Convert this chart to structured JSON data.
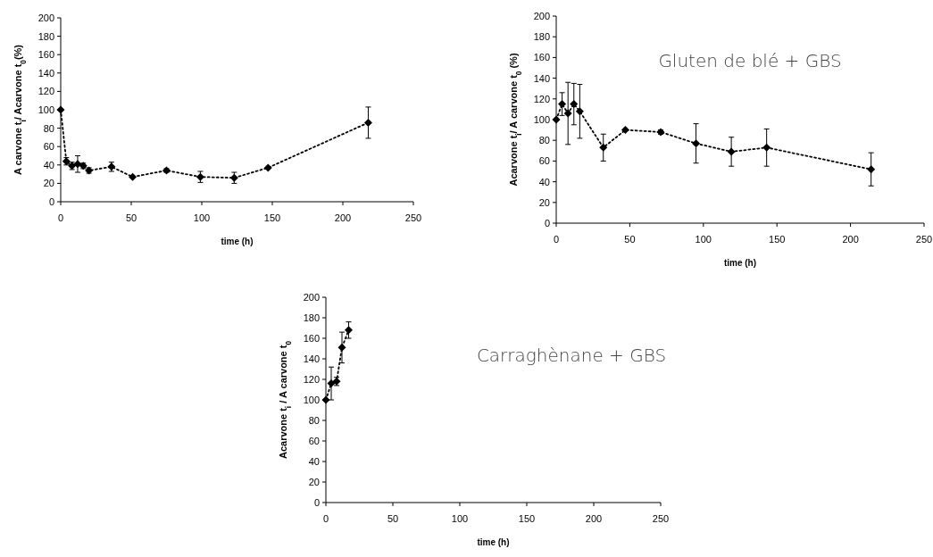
{
  "chart_data": [
    {
      "type": "line",
      "xlabel": "time (h)",
      "ylabel": "A carvone t$_{i}$/ Acarvone t$_{0}$(%)",
      "x": [
        0,
        4,
        8,
        12,
        16,
        20,
        36,
        51,
        75,
        99,
        123,
        147,
        218
      ],
      "xlim": [
        0,
        250
      ],
      "xticks": [
        0,
        50,
        100,
        150,
        200,
        250
      ],
      "ylim": [
        0,
        200
      ],
      "yticks": [
        0,
        20,
        40,
        60,
        80,
        100,
        120,
        140,
        160,
        180,
        200
      ],
      "marker": "diamond",
      "line_style": "dotted",
      "grid": false,
      "series": [
        {
          "color": "#000000",
          "values": [
            100,
            44,
            39,
            41,
            39,
            34,
            38,
            27,
            34,
            27,
            26,
            37,
            86
          ],
          "errors": [
            null,
            4,
            4,
            9,
            3,
            3,
            5,
            null,
            2,
            6,
            6,
            null,
            17
          ]
        }
      ]
    },
    {
      "type": "line",
      "xlabel": "time (h)",
      "ylabel": "Acarvone t$_{i}$/ A carvone t$_{0}$ (%)",
      "annotations": [
        "Gluten de blé + GBS"
      ],
      "x": [
        0,
        4,
        8,
        12,
        16,
        32,
        47,
        71,
        95,
        119,
        143,
        214
      ],
      "xlim": [
        0,
        250
      ],
      "xticks": [
        0,
        50,
        100,
        150,
        200,
        250
      ],
      "ylim": [
        0,
        200
      ],
      "yticks": [
        0,
        20,
        40,
        60,
        80,
        100,
        120,
        140,
        160,
        180,
        200
      ],
      "marker": "diamond",
      "line_style": "dotted",
      "grid": false,
      "series": [
        {
          "color": "#000000",
          "values": [
            100,
            115,
            106,
            115,
            108,
            73,
            90,
            88,
            77,
            69,
            73,
            52
          ],
          "errors": [
            null,
            11,
            30,
            20,
            26,
            13,
            null,
            2,
            19,
            14,
            18,
            16
          ]
        }
      ]
    },
    {
      "type": "line",
      "xlabel": "time (h)",
      "ylabel": "Acarvone t$_{i}$ /  A carvone t$_{0}$",
      "annotations": [
        "Carraghènane + GBS"
      ],
      "x": [
        0,
        4,
        8,
        12,
        17
      ],
      "xlim": [
        0,
        250
      ],
      "xticks": [
        0,
        50,
        100,
        150,
        200,
        250
      ],
      "ylim": [
        0,
        200
      ],
      "yticks": [
        0,
        20,
        40,
        60,
        80,
        100,
        120,
        140,
        160,
        180,
        200
      ],
      "marker": "diamond",
      "line_style": "dotted",
      "grid": false,
      "series": [
        {
          "color": "#000000",
          "values": [
            100,
            116,
            118,
            151,
            168
          ],
          "errors": [
            null,
            16,
            4,
            15,
            8
          ]
        }
      ]
    }
  ]
}
